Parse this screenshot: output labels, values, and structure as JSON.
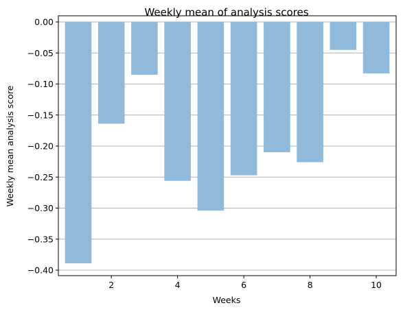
{
  "chart_data": {
    "type": "bar",
    "title": "Weekly mean of analysis scores",
    "xlabel": "Weeks",
    "ylabel": "Weekly mean analysis score",
    "categories": [
      1,
      2,
      3,
      4,
      5,
      6,
      7,
      8,
      9,
      10
    ],
    "values": [
      -0.389,
      -0.164,
      -0.085,
      -0.256,
      -0.304,
      -0.247,
      -0.21,
      -0.226,
      -0.045,
      -0.083
    ],
    "xlim": [
      0.4,
      10.6
    ],
    "ylim": [
      -0.405,
      0.0
    ],
    "xticks": [
      2,
      4,
      6,
      8,
      10
    ],
    "xtick_labels": [
      "2",
      "4",
      "6",
      "8",
      "10"
    ],
    "yticks": [
      0,
      -0.05,
      -0.1,
      -0.15,
      -0.2,
      -0.25,
      -0.3,
      -0.35,
      -0.4
    ],
    "ytick_labels": [
      "0.00",
      "−0.05",
      "−0.10",
      "−0.15",
      "−0.20",
      "−0.25",
      "−0.30",
      "−0.35",
      "−0.40"
    ],
    "grid": "y",
    "bar_color": "#8fbadb",
    "grid_color": "#b0b0b0"
  }
}
